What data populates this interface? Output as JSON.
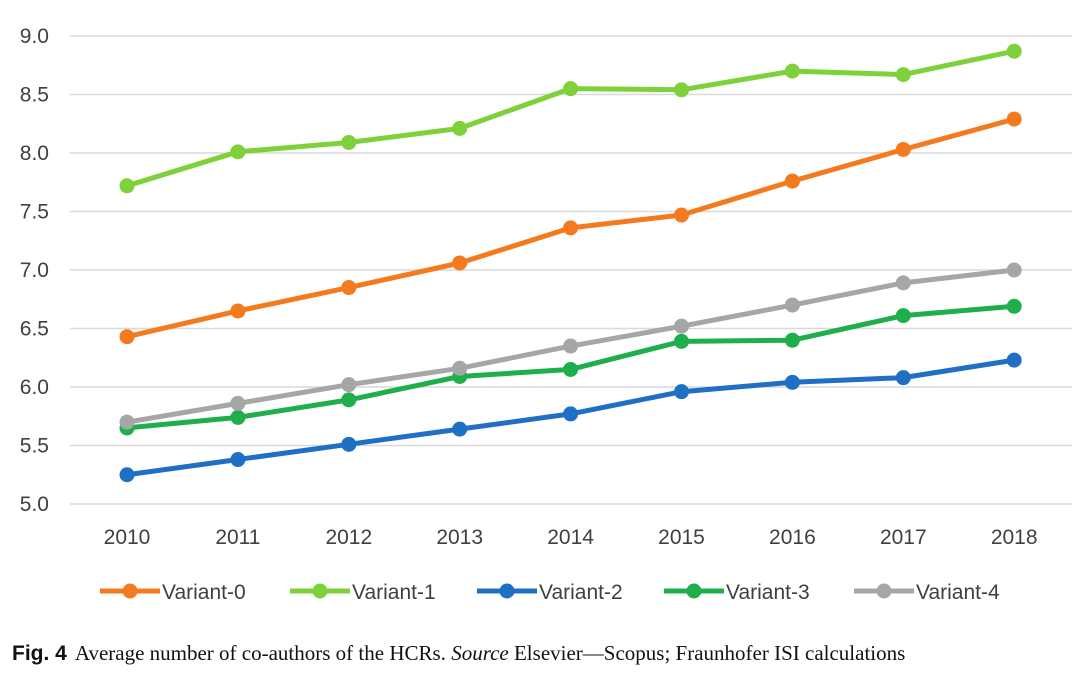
{
  "chart_data": {
    "type": "line",
    "title": "",
    "xlabel": "",
    "ylabel": "",
    "categories": [
      "2010",
      "2011",
      "2012",
      "2013",
      "2014",
      "2015",
      "2016",
      "2017",
      "2018"
    ],
    "ylim": [
      5.0,
      9.0
    ],
    "yticks": [
      "5.0",
      "5.5",
      "6.0",
      "6.5",
      "7.0",
      "7.5",
      "8.0",
      "8.5",
      "9.0"
    ],
    "grid": "horizontal",
    "legend_position": "bottom",
    "series": [
      {
        "name": "Variant-0",
        "color": "#F47A1F",
        "values": [
          6.43,
          6.65,
          6.85,
          7.06,
          7.36,
          7.47,
          7.76,
          8.03,
          8.29
        ]
      },
      {
        "name": "Variant-1",
        "color": "#7FD13B",
        "values": [
          7.72,
          8.01,
          8.09,
          8.21,
          8.55,
          8.54,
          8.7,
          8.67,
          8.87
        ]
      },
      {
        "name": "Variant-2",
        "color": "#1F6FC4",
        "values": [
          5.25,
          5.38,
          5.51,
          5.64,
          5.77,
          5.96,
          6.04,
          6.08,
          6.23
        ]
      },
      {
        "name": "Variant-3",
        "color": "#1EAE4C",
        "values": [
          5.65,
          5.74,
          5.89,
          6.09,
          6.15,
          6.39,
          6.4,
          6.61,
          6.69
        ]
      },
      {
        "name": "Variant-4",
        "color": "#A6A6A6",
        "values": [
          5.7,
          5.86,
          6.02,
          6.16,
          6.35,
          6.52,
          6.7,
          6.89,
          7.0
        ]
      }
    ]
  },
  "caption": {
    "fig_label": "Fig. 4",
    "text_before": "Average number of co-authors of the HCRs. ",
    "source_italic": "Source",
    "text_after": " Elsevier—Scopus; Fraunhofer ISI calculations"
  }
}
